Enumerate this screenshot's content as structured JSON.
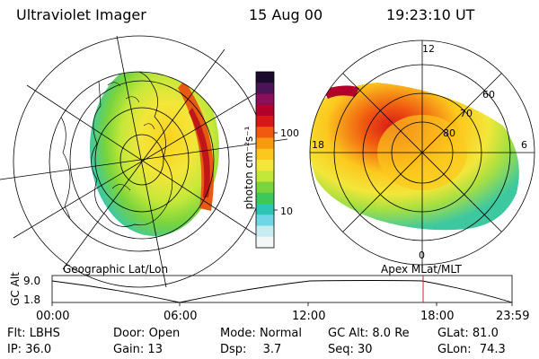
{
  "header": {
    "instrument": "Ultraviolet Imager",
    "date": "15 Aug 00",
    "time": "19:23:10 UT"
  },
  "colorbar": {
    "unit_label": "photon cm⁻²s⁻¹",
    "tick_labels": [
      "100",
      "10"
    ],
    "colors": [
      "#1a0a2e",
      "#4b1457",
      "#8a0f5a",
      "#b3002a",
      "#d81818",
      "#f05a10",
      "#f79a10",
      "#fcc81e",
      "#f3e63a",
      "#c4e83a",
      "#79d43d",
      "#3ec85a",
      "#2ec4b4",
      "#6ed6e6",
      "#c6ecf2",
      "#f3f7f8"
    ]
  },
  "left_panel": {
    "caption": "Geographic Lat/Lon"
  },
  "right_panel": {
    "caption": "Apex  MLat/MLT",
    "mlt_labels": {
      "top": "12",
      "bottom": "0",
      "left": "18",
      "right": "6"
    },
    "lat_labels": [
      "60",
      "70",
      "80"
    ]
  },
  "altitude_plot": {
    "ylabel": "GC Alt",
    "y_ticks": [
      "9.0",
      "1.8"
    ],
    "x_ticks": [
      "00:00",
      "06:00",
      "12:00",
      "18:00",
      "23:59"
    ],
    "marker_color": "#d02020"
  },
  "footer": {
    "row1": [
      {
        "label": "Flt:",
        "value": "LBHS"
      },
      {
        "label": "Door:",
        "value": "Open"
      },
      {
        "label": "Mode:",
        "value": "Normal"
      },
      {
        "label": "GC Alt:",
        "value": "8.0 Re"
      },
      {
        "label": "GLat:",
        "value": "81.0"
      }
    ],
    "row2": [
      {
        "label": "IP:",
        "value": "36.0"
      },
      {
        "label": "Gain:",
        "value": "13"
      },
      {
        "label": "Dsp:",
        "value": "3.7"
      },
      {
        "label": "Seq:",
        "value": "30"
      },
      {
        "label": "GLon:",
        "value": "74.3"
      }
    ]
  }
}
